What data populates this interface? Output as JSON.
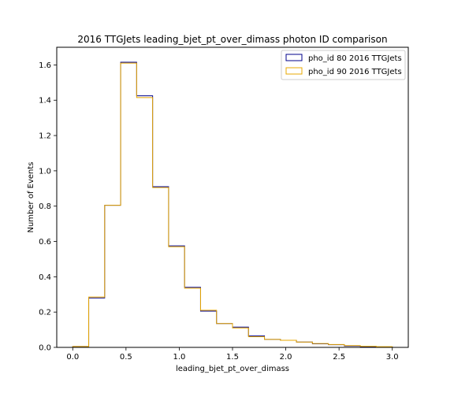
{
  "chart_data": {
    "type": "histogram-step",
    "title": "2016 TTGJets leading_bjet_pt_over_dimass photon ID comparison",
    "xlabel": "leading_bjet_pt_over_dimass",
    "ylabel": "Number of Events",
    "xlim": [
      -0.15,
      3.15
    ],
    "ylim": [
      0,
      1.7
    ],
    "xticks": [
      0.0,
      0.5,
      1.0,
      1.5,
      2.0,
      2.5,
      3.0
    ],
    "xtick_labels": [
      "0.0",
      "0.5",
      "1.0",
      "1.5",
      "2.0",
      "2.5",
      "3.0"
    ],
    "yticks": [
      0.0,
      0.2,
      0.4,
      0.6,
      0.8,
      1.0,
      1.2,
      1.4,
      1.6
    ],
    "ytick_labels": [
      "0.0",
      "0.2",
      "0.4",
      "0.6",
      "0.8",
      "1.0",
      "1.2",
      "1.4",
      "1.6"
    ],
    "bin_edges": [
      0.0,
      0.15,
      0.3,
      0.45,
      0.6,
      0.75,
      0.9,
      1.05,
      1.2,
      1.35,
      1.5,
      1.65,
      1.8,
      1.95,
      2.1,
      2.25,
      2.4,
      2.55,
      2.7,
      2.85,
      3.0
    ],
    "legend_position": "upper right",
    "grid": false,
    "series": [
      {
        "name": "pho_id 80 2016 TTGJets",
        "color": "#00008b",
        "values": [
          0.005,
          0.28,
          0.805,
          1.615,
          1.425,
          0.91,
          0.575,
          0.34,
          0.205,
          0.135,
          0.115,
          0.065,
          0.045,
          0.04,
          0.03,
          0.02,
          0.015,
          0.008,
          0.004,
          0.002
        ]
      },
      {
        "name": "pho_id 90 2016 TTGJets",
        "color": "#e8a800",
        "values": [
          0.005,
          0.285,
          0.805,
          1.61,
          1.415,
          0.905,
          0.57,
          0.335,
          0.21,
          0.135,
          0.11,
          0.06,
          0.045,
          0.04,
          0.03,
          0.022,
          0.016,
          0.01,
          0.006,
          0.004
        ]
      }
    ]
  }
}
